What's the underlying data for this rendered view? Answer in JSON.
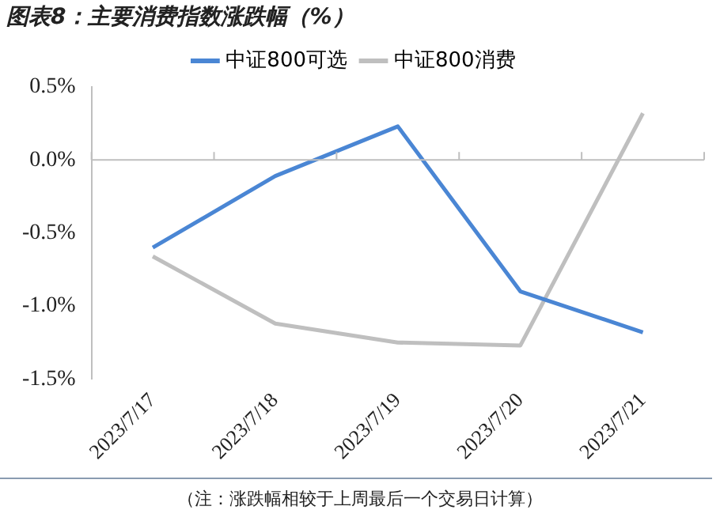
{
  "chart_data": {
    "type": "line",
    "title": "图表8：主要消费指数涨跌幅（%）",
    "categories": [
      "2023/7/17",
      "2023/7/18",
      "2023/7/19",
      "2023/7/20",
      "2023/7/21"
    ],
    "series": [
      {
        "name": "中证800可选",
        "color": "#4a86d4",
        "values": [
          -0.6,
          -0.11,
          0.23,
          -0.9,
          -1.18
        ]
      },
      {
        "name": "中证800消费",
        "color": "#bfbfbf",
        "values": [
          -0.66,
          -1.12,
          -1.25,
          -1.27,
          0.32
        ]
      }
    ],
    "ylim": [
      -1.5,
      0.5
    ],
    "yticks": [
      {
        "value": -1.5,
        "label": "-1.5%"
      },
      {
        "value": -1,
        "label": "-1.0%"
      },
      {
        "value": -0.5,
        "label": "-0.5%"
      },
      {
        "value": 0,
        "label": "0.0%"
      },
      {
        "value": 0.5,
        "label": "0.5%"
      }
    ],
    "legend": "top",
    "marker": "none",
    "line_style": "solid",
    "annotations": [
      "（注：涨跌幅相较于上周最后一个交易日计算）"
    ]
  }
}
